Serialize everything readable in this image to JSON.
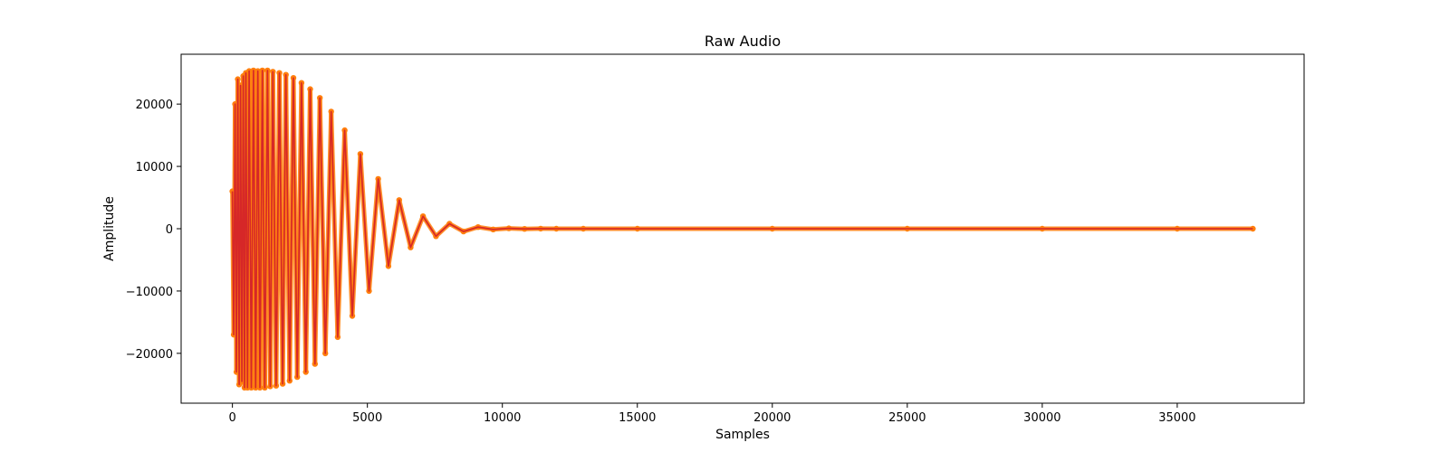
{
  "chart_data": {
    "type": "line",
    "title": "Raw Audio",
    "xlabel": "Samples",
    "ylabel": "Amplitude",
    "xlim": [
      -1900,
      39700
    ],
    "ylim": [
      -28000,
      28000
    ],
    "xticks": [
      0,
      5000,
      10000,
      15000,
      20000,
      25000,
      30000,
      35000
    ],
    "yticks": [
      -20000,
      -10000,
      0,
      10000,
      20000
    ],
    "grid": false,
    "legend": "none",
    "series": [
      {
        "style": "line",
        "color": "#d62728",
        "x": [
          0,
          50,
          100,
          150,
          200,
          250,
          300,
          350,
          400,
          450,
          500,
          560,
          620,
          700,
          780,
          860,
          940,
          1020,
          1110,
          1200,
          1300,
          1400,
          1500,
          1620,
          1740,
          1860,
          1980,
          2120,
          2260,
          2400,
          2560,
          2720,
          2880,
          3060,
          3240,
          3440,
          3660,
          3900,
          4160,
          4440,
          4740,
          5060,
          5400,
          5780,
          6180,
          6600,
          7060,
          7540,
          8040,
          8560,
          9100,
          9660,
          10240,
          10820,
          11420,
          12000,
          13000,
          15000,
          20000,
          25000,
          30000,
          35000,
          37800
        ],
        "y": [
          6000,
          -17000,
          20000,
          -23000,
          24000,
          -25000,
          23000,
          -24500,
          24500,
          -25500,
          25000,
          -25500,
          25300,
          -25500,
          25400,
          -25500,
          25300,
          -25500,
          25400,
          -25500,
          25400,
          -25300,
          25200,
          -25200,
          25000,
          -24900,
          24700,
          -24400,
          24200,
          -23800,
          23400,
          -23000,
          22400,
          -21700,
          21000,
          -20000,
          18800,
          -17400,
          15800,
          -14000,
          12000,
          -10000,
          8000,
          -6000,
          4600,
          -3000,
          2000,
          -1200,
          800,
          -450,
          260,
          -120,
          60,
          -25,
          10,
          0,
          0,
          0,
          0,
          0,
          0,
          0,
          0
        ]
      },
      {
        "style": "scatter",
        "color": "#ff7f0e",
        "x": [
          0,
          50,
          100,
          150,
          200,
          250,
          300,
          350,
          400,
          450,
          500,
          560,
          620,
          700,
          780,
          860,
          940,
          1020,
          1110,
          1200,
          1300,
          1400,
          1500,
          1620,
          1740,
          1860,
          1980,
          2120,
          2260,
          2400,
          2560,
          2720,
          2880,
          3060,
          3240,
          3440,
          3660,
          3900,
          4160,
          4440,
          4740,
          5060,
          5400,
          5780,
          6180,
          6600,
          7060,
          7540,
          8040,
          8560,
          9100,
          9660,
          10240,
          10820,
          11420,
          12000,
          13000,
          15000,
          20000,
          25000,
          30000,
          35000,
          37800
        ],
        "y": [
          6000,
          -17000,
          20000,
          -23000,
          24000,
          -25000,
          23000,
          -24500,
          24500,
          -25500,
          25000,
          -25500,
          25300,
          -25500,
          25400,
          -25500,
          25300,
          -25500,
          25400,
          -25500,
          25400,
          -25300,
          25200,
          -25200,
          25000,
          -24900,
          24700,
          -24400,
          24200,
          -23800,
          23400,
          -23000,
          22400,
          -21700,
          21000,
          -20000,
          18800,
          -17400,
          15800,
          -14000,
          12000,
          -10000,
          8000,
          -6000,
          4600,
          -3000,
          2000,
          -1200,
          800,
          -450,
          260,
          -120,
          60,
          -25,
          10,
          0,
          0,
          0,
          0,
          0,
          0,
          0,
          0
        ]
      }
    ]
  }
}
